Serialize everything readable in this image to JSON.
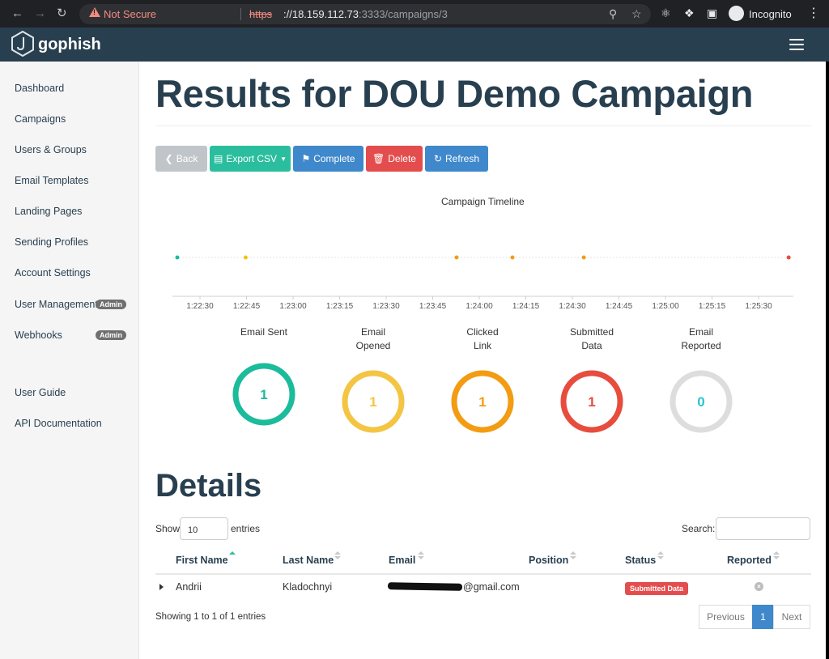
{
  "browser": {
    "security_label": "Not Secure",
    "url_scheme": "https",
    "url_host": "://18.159.112.73",
    "url_path": ":3333/campaigns/3",
    "profile_label": "Incognito"
  },
  "navbar": {
    "brand": "gophish"
  },
  "sidebar": {
    "items": [
      {
        "label": "Dashboard"
      },
      {
        "label": "Campaigns"
      },
      {
        "label": "Users & Groups"
      },
      {
        "label": "Email Templates"
      },
      {
        "label": "Landing Pages"
      },
      {
        "label": "Sending Profiles"
      },
      {
        "label": "Account Settings"
      },
      {
        "label": "User Management",
        "badge": "Admin"
      },
      {
        "label": "Webhooks",
        "badge": "Admin"
      }
    ],
    "footer_items": [
      {
        "label": "User Guide"
      },
      {
        "label": "API Documentation"
      }
    ]
  },
  "page": {
    "title": "Results for DOU Demo Campaign"
  },
  "toolbar": {
    "back_label": "Back",
    "export_label": "Export CSV",
    "complete_label": "Complete",
    "delete_label": "Delete",
    "refresh_label": "Refresh"
  },
  "timeline": {
    "title": "Campaign Timeline",
    "ticks": [
      "1:22:30",
      "1:22:45",
      "1:23:00",
      "1:23:15",
      "1:23:30",
      "1:23:45",
      "1:24:00",
      "1:24:15",
      "1:24:30",
      "1:24:45",
      "1:25:00",
      "1:25:15",
      "1:25:30"
    ],
    "events": [
      {
        "time_s": 0,
        "color": "#1abc9c"
      },
      {
        "time_s": 22,
        "color": "#f1c40f"
      },
      {
        "time_s": 90,
        "color": "#f39c12"
      },
      {
        "time_s": 108,
        "color": "#f39c12"
      },
      {
        "time_s": 131,
        "color": "#f39c12"
      },
      {
        "time_s": 197,
        "color": "#e74c3c"
      }
    ]
  },
  "stats": [
    {
      "label": "Email Sent",
      "value": "1",
      "color": "#1abc9c",
      "fraction": 1
    },
    {
      "label": "Email Opened",
      "value": "1",
      "color": "#f4c542",
      "fraction": 1
    },
    {
      "label": "Clicked Link",
      "value": "1",
      "color": "#f39c12",
      "fraction": 1
    },
    {
      "label": "Submitted Data",
      "value": "1",
      "color": "#e74c3c",
      "fraction": 1
    },
    {
      "label": "Email Reported",
      "value": "0",
      "color": "#2bc4d1",
      "fraction": 0
    }
  ],
  "details": {
    "title": "Details",
    "show_label": "Show",
    "entries_value": "10",
    "entries_label": "entries",
    "search_label": "Search:",
    "columns": [
      "First Name",
      "Last Name",
      "Email",
      "Position",
      "Status",
      "Reported"
    ],
    "rows": [
      {
        "first_name": "Andrii",
        "last_name": "Kladochnyi",
        "email": "@gmail.com",
        "position": "",
        "status": "Submitted Data"
      }
    ],
    "info": "Showing 1 to 1 of 1 entries",
    "pagination": {
      "previous": "Previous",
      "current": "1",
      "next": "Next"
    }
  }
}
